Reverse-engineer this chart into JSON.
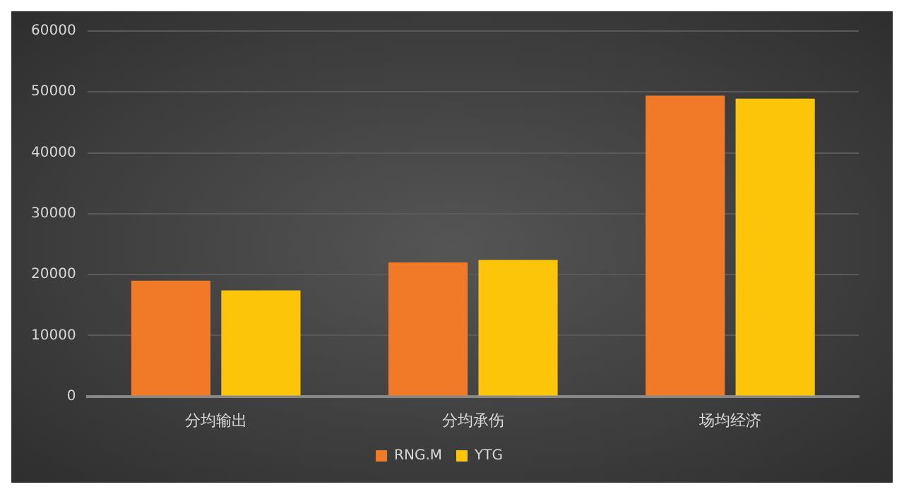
{
  "chart_data": {
    "type": "bar",
    "categories": [
      "分均输出",
      "分均承伤",
      "场均经济"
    ],
    "series": [
      {
        "name": "RNG.M",
        "color": "#f07a28",
        "values": [
          19000,
          22000,
          49400
        ]
      },
      {
        "name": "YTG",
        "color": "#fcc50a",
        "values": [
          17400,
          22400,
          48900
        ]
      }
    ],
    "ylim": [
      0,
      60000
    ],
    "yticks": [
      0,
      10000,
      20000,
      30000,
      40000,
      50000,
      60000
    ],
    "grid": "y",
    "legend": "bottom"
  }
}
